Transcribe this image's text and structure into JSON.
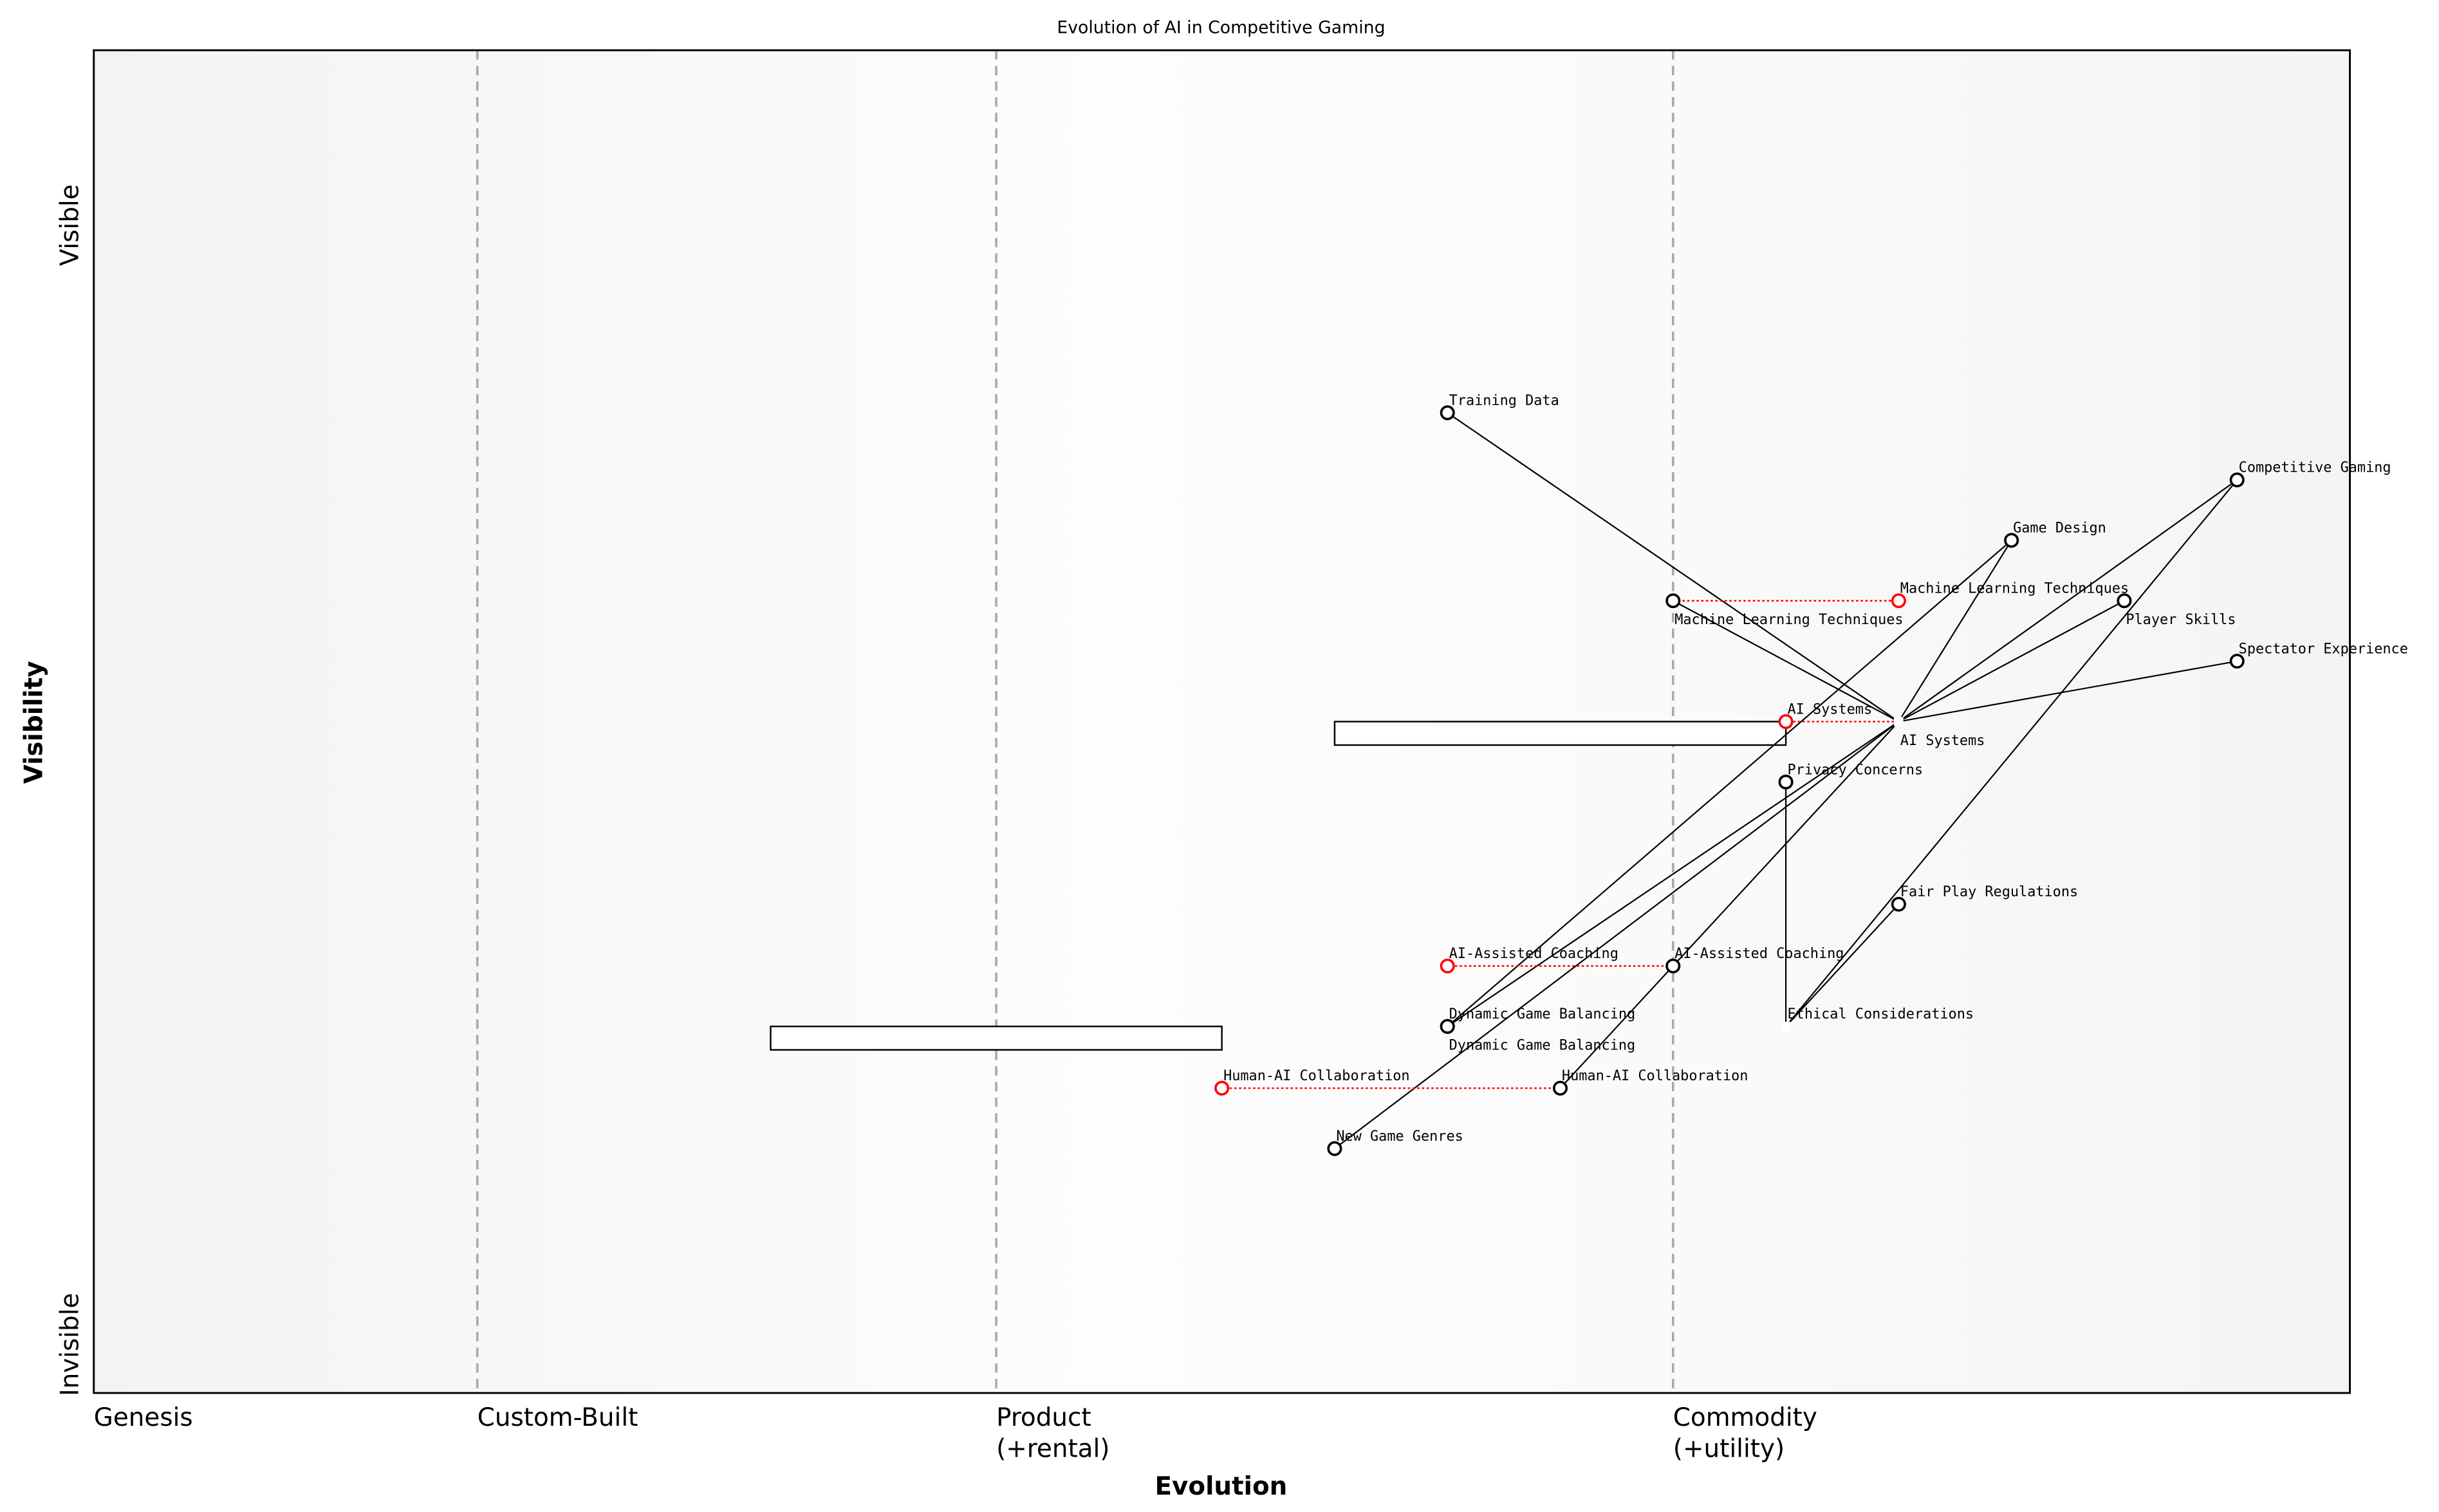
{
  "title": "Evolution of AI in Competitive Gaming",
  "x_axis": {
    "label": "Evolution",
    "stages": [
      {
        "label": [
          "Genesis"
        ],
        "evolution": 0.0
      },
      {
        "label": [
          "Custom-Built"
        ],
        "evolution": 0.17
      },
      {
        "label": [
          "Product",
          "(+rental)"
        ],
        "evolution": 0.4
      },
      {
        "label": [
          "Commodity",
          "(+utility)"
        ],
        "evolution": 0.7
      }
    ]
  },
  "y_axis": {
    "label": "Visibility",
    "top_label": "Visible",
    "bottom_label": "Invisible"
  },
  "colors": {
    "component": "#000000",
    "evolved": "#ff0000",
    "stage_line": "#aaaaaa",
    "link": "#000000"
  },
  "components": [
    {
      "name": "Training Data",
      "evolution": 0.6,
      "visibility": 0.73
    },
    {
      "name": "Competitive Gaming",
      "evolution": 0.95,
      "visibility": 0.68
    },
    {
      "name": "Game Design",
      "evolution": 0.85,
      "visibility": 0.635
    },
    {
      "name": "Machine Learning Techniques",
      "evolution": 0.7,
      "visibility": 0.59
    },
    {
      "name": "Player Skills",
      "evolution": 0.9,
      "visibility": 0.59
    },
    {
      "name": "Spectator Experience",
      "evolution": 0.95,
      "visibility": 0.545
    },
    {
      "name": "AI Systems",
      "evolution": 0.8,
      "visibility": 0.5,
      "hidden_marker": true
    },
    {
      "name": "Privacy Concerns",
      "evolution": 0.75,
      "visibility": 0.455
    },
    {
      "name": "Fair Play Regulations",
      "evolution": 0.8,
      "visibility": 0.364
    },
    {
      "name": "AI-Assisted Coaching",
      "evolution": 0.7,
      "visibility": 0.318
    },
    {
      "name": "Dynamic Game Balancing",
      "evolution": 0.6,
      "visibility": 0.273
    },
    {
      "name": "Ethical Considerations",
      "evolution": 0.75,
      "visibility": 0.273,
      "hidden_marker": true
    },
    {
      "name": "Human-AI Collaboration",
      "evolution": 0.65,
      "visibility": 0.227
    },
    {
      "name": "New Game Genres",
      "evolution": 0.55,
      "visibility": 0.182
    }
  ],
  "evolved": [
    {
      "name": "Machine Learning Techniques",
      "from": 0.7,
      "to": 0.8,
      "visibility": 0.59
    },
    {
      "name": "AI Systems",
      "from": 0.8,
      "to": 0.75,
      "visibility": 0.5
    },
    {
      "name": "AI-Assisted Coaching",
      "from": 0.7,
      "to": 0.6,
      "visibility": 0.318
    },
    {
      "name": "Dynamic Game Balancing",
      "from": 0.6,
      "to": 0.6,
      "visibility": 0.273
    },
    {
      "name": "Human-AI Collaboration",
      "from": 0.65,
      "to": 0.5,
      "visibility": 0.227
    }
  ],
  "inertia": [
    {
      "from": 0.55,
      "to": 0.75,
      "visibility": 0.5
    },
    {
      "from": 0.3,
      "to": 0.5,
      "visibility": 0.273
    }
  ],
  "links": [
    [
      "AI Systems",
      "Training Data"
    ],
    [
      "AI Systems",
      "Machine Learning Techniques"
    ],
    [
      "AI Systems",
      "Game Design"
    ],
    [
      "AI Systems",
      "Competitive Gaming"
    ],
    [
      "AI Systems",
      "Player Skills"
    ],
    [
      "AI Systems",
      "Spectator Experience"
    ],
    [
      "AI Systems",
      "Dynamic Game Balancing"
    ],
    [
      "AI Systems",
      "New Game Genres"
    ],
    [
      "AI Systems",
      "AI-Assisted Coaching"
    ],
    [
      "Game Design",
      "Dynamic Game Balancing"
    ],
    [
      "Competitive Gaming",
      "Ethical Considerations"
    ],
    [
      "Fair Play Regulations",
      "Ethical Considerations"
    ],
    [
      "Privacy Concerns",
      "Ethical Considerations"
    ],
    [
      "AI-Assisted Coaching",
      "Human-AI Collaboration"
    ]
  ]
}
